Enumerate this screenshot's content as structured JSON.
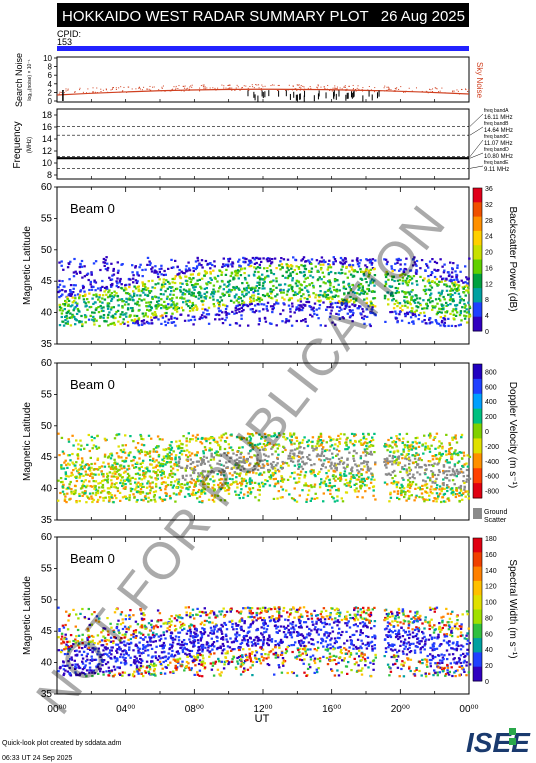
{
  "header": {
    "title": "HOKKAIDO WEST RADAR SUMMARY PLOT",
    "date": "26 Aug 2025",
    "cpid_label": "CPID:",
    "cpid_value": "153"
  },
  "noise_panel": {
    "ylabel": "Search Noise",
    "ylabel_small": "log₁₀(noise) × 10⁻¹",
    "right_label": "Sky Noise",
    "ticks": [
      "10",
      "8",
      "6",
      "4",
      "2",
      "0"
    ]
  },
  "freq_panel": {
    "ylabel": "Frequency",
    "ylabel_small": "(MHz)",
    "ticks": [
      "18",
      "16",
      "14",
      "12",
      "10",
      "8"
    ],
    "bands": [
      {
        "name": "freq bandA",
        "value": "16.11 MHz"
      },
      {
        "name": "freq bandB",
        "value": "14.64 MHz"
      },
      {
        "name": "freq bandC",
        "value": "11.07 MHz"
      },
      {
        "name": "freq bandD",
        "value": "10.80 MHz"
      },
      {
        "name": "freq bandE",
        "value": "9.11 MHz"
      }
    ]
  },
  "panels": [
    {
      "beam": "Beam  0",
      "ylabel": "Magnetic Latitude",
      "cb_label": "Backscatter Power (dB)",
      "cb_ticks": [
        "36",
        "32",
        "28",
        "24",
        "20",
        "16",
        "12",
        "8",
        "4",
        "0"
      ]
    },
    {
      "beam": "Beam  0",
      "ylabel": "Magnetic Latitude",
      "cb_label": "Doppler Velocity (m s⁻¹)",
      "cb_ticks": [
        "800",
        "600",
        "400",
        "200",
        "0",
        "-200",
        "-400",
        "-600",
        "-800"
      ],
      "ground_label_1": "Ground",
      "ground_label_2": "Scatter"
    },
    {
      "beam": "Beam  0",
      "ylabel": "Magnetic Latitude",
      "cb_label": "Spectral Width (m s⁻¹)",
      "cb_ticks": [
        "180",
        "160",
        "140",
        "120",
        "100",
        "80",
        "60",
        "40",
        "20",
        "0"
      ]
    }
  ],
  "xaxis": {
    "label": "UT",
    "ticks": [
      "00⁰⁰",
      "04⁰⁰",
      "08⁰⁰",
      "12⁰⁰",
      "16⁰⁰",
      "20⁰⁰",
      "00⁰⁰"
    ]
  },
  "watermark": "NOT FOR PUBLICATION",
  "footer": {
    "line1": "Quick-look plot created by sddata.adm",
    "line2": "06:33 UT 24 Sep 2025",
    "logo": "ISEE"
  },
  "chart_data": {
    "type": "heatmap",
    "title": "HOKKAIDO WEST RADAR SUMMARY PLOT",
    "xlabel": "UT",
    "ylabel": "Magnetic Latitude",
    "xlim_hours": [
      0,
      24
    ],
    "ylim_mlat": [
      35,
      60
    ],
    "scatter_region_mlat": [
      38,
      49
    ],
    "data_gap_ut_hours": [
      18.5,
      19.0
    ],
    "colorbars": {
      "power_db": [
        0,
        36
      ],
      "velocity_ms": [
        -800,
        800
      ],
      "width_ms": [
        0,
        180
      ]
    },
    "freq_bands_mhz": [
      16.11,
      14.64,
      11.07,
      10.8,
      9.11
    ],
    "operating_frequency_mhz": 10.8
  }
}
